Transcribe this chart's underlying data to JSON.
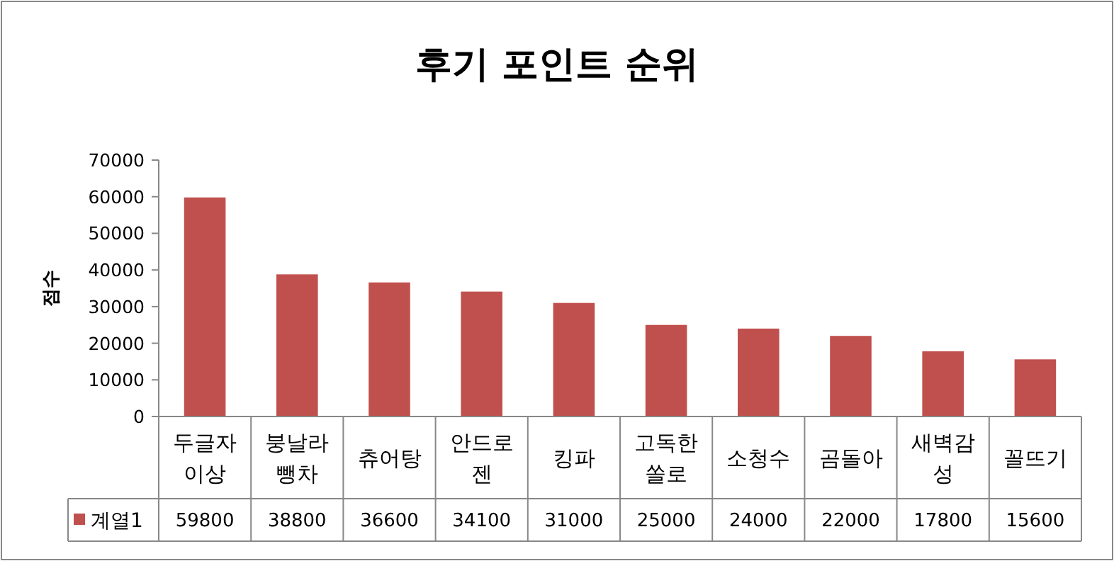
{
  "chart_data": {
    "type": "bar",
    "title": "후기 포인트 순위",
    "ylabel": "점수",
    "categories": [
      "두글자이상",
      "붕날라뺑차",
      "츄어탕",
      "안드로젠",
      "킹파",
      "고독한쏠로",
      "소청수",
      "곰돌아",
      "새벽감성",
      "꼴뜨기"
    ],
    "series": [
      {
        "name": "계열1",
        "color": "#c0504d",
        "values": [
          59800,
          38800,
          36600,
          34100,
          31000,
          25000,
          24000,
          22000,
          17800,
          15600
        ]
      }
    ],
    "ylim": [
      0,
      70000
    ],
    "yticks": [
      0,
      10000,
      20000,
      30000,
      40000,
      50000,
      60000,
      70000
    ],
    "data_labels": true,
    "legend": "bottom",
    "grid": false
  }
}
